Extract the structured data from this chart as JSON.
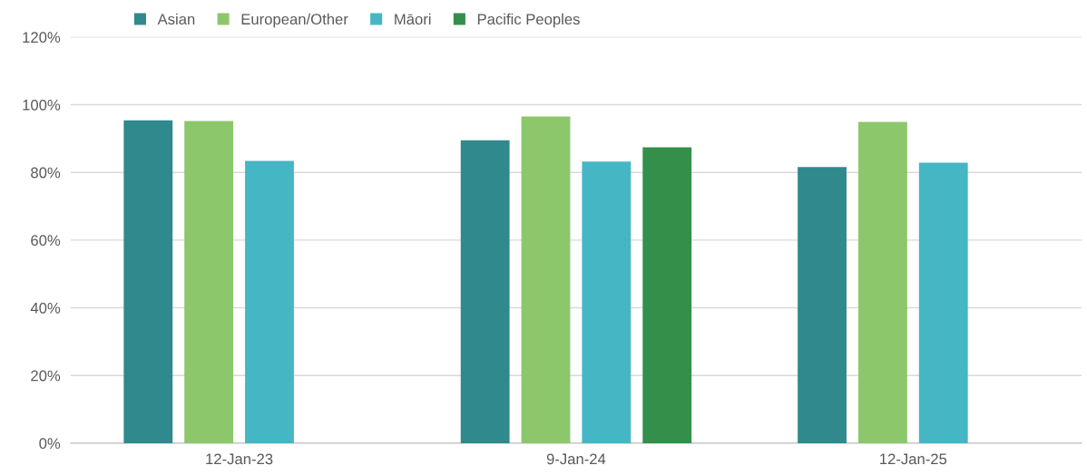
{
  "chart_data": {
    "type": "bar",
    "categories": [
      "12-Jan-23",
      "9-Jan-24",
      "12-Jan-25"
    ],
    "series": [
      {
        "name": "Asian",
        "color": "#30898d",
        "values": [
          95.4,
          89.5,
          81.6
        ]
      },
      {
        "name": "European/Other",
        "color": "#8cc76b",
        "values": [
          95.2,
          96.5,
          94.9
        ]
      },
      {
        "name": "Māori",
        "color": "#45b6c4",
        "values": [
          83.4,
          83.2,
          82.9
        ]
      },
      {
        "name": "Pacific Peoples",
        "color": "#338f4a",
        "values": [
          null,
          87.4,
          null
        ]
      }
    ],
    "ylim": [
      0,
      120
    ],
    "yticks": [
      {
        "value": 0,
        "label": "0%"
      },
      {
        "value": 20,
        "label": "20%"
      },
      {
        "value": 40,
        "label": "40%"
      },
      {
        "value": 60,
        "label": "60%"
      },
      {
        "value": 80,
        "label": "80%"
      },
      {
        "value": 100,
        "label": "100%"
      },
      {
        "value": 120,
        "label": "120%"
      }
    ],
    "grid": "y",
    "legend": "top left"
  }
}
